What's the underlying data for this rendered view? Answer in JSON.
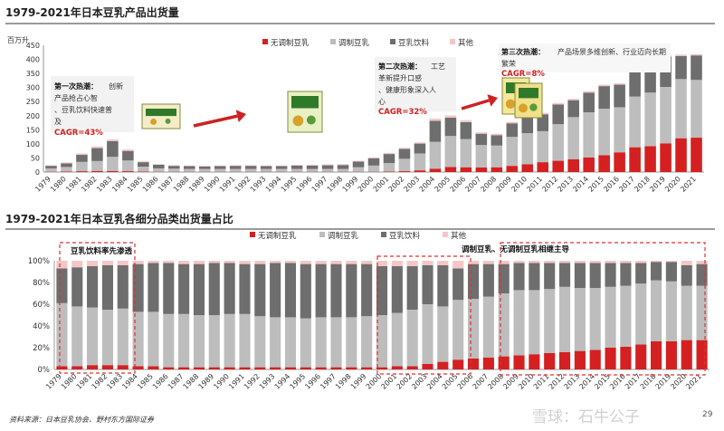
{
  "page": {
    "footnote": "资料来源：日本豆乳协会、野村东方国际证券",
    "watermark": "雪球：石牛公子",
    "page_number": "29"
  },
  "colors": {
    "unadjusted": "#d42020",
    "adjusted": "#bdbdbd",
    "beverage": "#6e6e6e",
    "other": "#f6c6c6",
    "arrow": "#cc2222",
    "dash_box": "#e03030"
  },
  "chart_data": [
    {
      "type": "bar",
      "stacked": true,
      "title": "1979-2021年日本豆乳产品出货量",
      "ylabel": "百万升",
      "ylim": [
        0,
        450
      ],
      "yticks": [
        0,
        50,
        100,
        150,
        200,
        250,
        300,
        350,
        400,
        450
      ],
      "grid": false,
      "legend_position": "top-right",
      "categories": [
        "1979",
        "1980",
        "1981",
        "1982",
        "1983",
        "1984",
        "1985",
        "1986",
        "1987",
        "1988",
        "1989",
        "1990",
        "1991",
        "1992",
        "1993",
        "1994",
        "1995",
        "1996",
        "1997",
        "1998",
        "1999",
        "2000",
        "2001",
        "2002",
        "2003",
        "2004",
        "2005",
        "2006",
        "2007",
        "2008",
        "2009",
        "2010",
        "2011",
        "2012",
        "2013",
        "2014",
        "2015",
        "2016",
        "2017",
        "2018",
        "2019",
        "2020",
        "2021"
      ],
      "series": [
        {
          "name": "无调制豆乳",
          "color_key": "unadjusted",
          "values": [
            1,
            2,
            3,
            4,
            4,
            3,
            2,
            1,
            1,
            1,
            1,
            1,
            1,
            1,
            1,
            1,
            1,
            1,
            1,
            1,
            1,
            1,
            2,
            3,
            6,
            12,
            18,
            17,
            16,
            17,
            22,
            28,
            35,
            40,
            45,
            52,
            60,
            70,
            88,
            92,
            102,
            120,
            122
          ]
        },
        {
          "name": "调制豆乳",
          "color_key": "adjusted",
          "values": [
            12,
            16,
            33,
            35,
            50,
            38,
            17,
            12,
            11,
            10,
            10,
            10,
            10,
            10,
            10,
            10,
            10,
            10,
            10,
            10,
            16,
            22,
            30,
            44,
            60,
            95,
            110,
            100,
            80,
            77,
            103,
            110,
            110,
            130,
            150,
            160,
            165,
            160,
            180,
            190,
            200,
            210,
            205
          ]
        },
        {
          "name": "豆乳饮料",
          "color_key": "beverage",
          "values": [
            9,
            13,
            25,
            46,
            56,
            34,
            16,
            13,
            10,
            10,
            9,
            10,
            11,
            11,
            10,
            10,
            12,
            12,
            13,
            14,
            20,
            26,
            32,
            35,
            35,
            75,
            65,
            60,
            40,
            37,
            48,
            55,
            60,
            70,
            60,
            70,
            80,
            80,
            90,
            98,
            108,
            82,
            87
          ]
        },
        {
          "name": "其他",
          "color_key": "other",
          "values": [
            2,
            3,
            5,
            6,
            6,
            5,
            3,
            2,
            2,
            2,
            2,
            2,
            2,
            2,
            2,
            2,
            3,
            3,
            3,
            3,
            3,
            3,
            4,
            4,
            4,
            8,
            8,
            7,
            5,
            5,
            5,
            5,
            5,
            5,
            5,
            5,
            5,
            5,
            5,
            5,
            5,
            5,
            5
          ]
        }
      ],
      "annotations": [
        {
          "heading": "第一次热潮：",
          "body": "创新产品抢占心智、豆乳饮料快速普及",
          "cagr": "CAGR=43%"
        },
        {
          "heading": "第二次热潮：",
          "body": "工艺革新提升口感、健康形象深入人心",
          "cagr": "CAGR=32%"
        },
        {
          "heading": "第三次热潮：",
          "body": "产品场景多维创新、行业迈向长期繁荣",
          "cagr": "CAGR=8%"
        }
      ]
    },
    {
      "type": "bar",
      "stacked": true,
      "percent": true,
      "title": "1979-2021年日本豆乳各细分品类出货量占比",
      "ylim": [
        0,
        100
      ],
      "yticks": [
        "0%",
        "20%",
        "40%",
        "60%",
        "80%",
        "100%"
      ],
      "grid": false,
      "legend_position": "top-center",
      "categories": [
        "1979",
        "1980",
        "1981",
        "1982",
        "1983",
        "1984",
        "1985",
        "1986",
        "1987",
        "1988",
        "1989",
        "1990",
        "1991",
        "1992",
        "1993",
        "1994",
        "1995",
        "1996",
        "1997",
        "1998",
        "1999",
        "2000",
        "2001",
        "2002",
        "2003",
        "2004",
        "2005",
        "2006",
        "2007",
        "2008",
        "2009",
        "2010",
        "2011",
        "2012",
        "2013",
        "2014",
        "2015",
        "2016",
        "2017",
        "2018",
        "2019",
        "2020",
        "2021"
      ],
      "series": [
        {
          "name": "无调制豆乳",
          "color_key": "unadjusted",
          "values": [
            3,
            3,
            4,
            4,
            4,
            3,
            3,
            2,
            2,
            2,
            2,
            2,
            2,
            2,
            2,
            2,
            2,
            2,
            2,
            2,
            2,
            2,
            3,
            3,
            5,
            7,
            9,
            10,
            11,
            12,
            13,
            14,
            15,
            16,
            17,
            18,
            20,
            21,
            23,
            26,
            26,
            27,
            27
          ]
        },
        {
          "name": "调制豆乳",
          "color_key": "adjusted",
          "values": [
            58,
            55,
            53,
            51,
            52,
            50,
            50,
            49,
            49,
            48,
            48,
            49,
            49,
            47,
            46,
            46,
            45,
            46,
            46,
            46,
            47,
            48,
            49,
            52,
            55,
            51,
            55,
            55,
            56,
            58,
            60,
            59,
            59,
            60,
            58,
            57,
            56,
            56,
            56,
            56,
            55,
            50,
            50
          ]
        },
        {
          "name": "豆乳饮料",
          "color_key": "beverage",
          "values": [
            32,
            36,
            38,
            41,
            40,
            44,
            45,
            47,
            46,
            47,
            48,
            47,
            46,
            48,
            50,
            50,
            50,
            49,
            49,
            49,
            48,
            45,
            43,
            40,
            36,
            38,
            29,
            32,
            30,
            27,
            25,
            25,
            24,
            22,
            23,
            23,
            22,
            21,
            19,
            17,
            18,
            19,
            20
          ]
        },
        {
          "name": "其他",
          "color_key": "other",
          "values": [
            7,
            6,
            5,
            4,
            4,
            3,
            2,
            2,
            3,
            3,
            2,
            2,
            3,
            3,
            2,
            2,
            3,
            3,
            3,
            3,
            3,
            5,
            5,
            5,
            4,
            4,
            7,
            3,
            3,
            3,
            2,
            2,
            2,
            2,
            2,
            2,
            2,
            2,
            2,
            1,
            1,
            4,
            3
          ]
        }
      ],
      "annotations": [
        {
          "text": "豆乳饮料率先渗透"
        },
        {
          "text": "调制豆乳、无调制豆乳相继主导"
        }
      ]
    }
  ]
}
